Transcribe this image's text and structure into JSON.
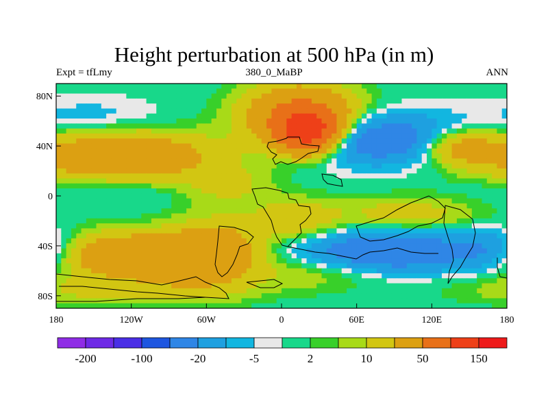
{
  "chart_data": {
    "type": "heatmap",
    "title": "Height perturbation at 500 hPa (in m)",
    "left_label": "Expt = tfLmy",
    "center_label": "380_0_MaBP",
    "right_label": "ANN",
    "x_ticks": [
      "180",
      "120W",
      "60W",
      "0",
      "60E",
      "120E",
      "180"
    ],
    "x_range": [
      -180,
      180
    ],
    "y_ticks": [
      "80N",
      "40N",
      "0",
      "40S",
      "80S"
    ],
    "y_range": [
      -90,
      90
    ],
    "levels": [
      -200,
      -150,
      -100,
      -50,
      -20,
      -10,
      -5,
      -2,
      2,
      5,
      10,
      20,
      50,
      100,
      150,
      200
    ],
    "colorbar_labels": [
      {
        "level": -200,
        "text": "-200"
      },
      {
        "level": -100,
        "text": "-100"
      },
      {
        "level": -20,
        "text": "-20"
      },
      {
        "level": -5,
        "text": "-5"
      },
      {
        "level": 2,
        "text": "2"
      },
      {
        "level": 10,
        "text": "10"
      },
      {
        "level": 50,
        "text": "50"
      },
      {
        "level": 150,
        "text": "150"
      }
    ],
    "colors": [
      "#8f2de6",
      "#6e2ae6",
      "#4a2ee6",
      "#1e56e0",
      "#2f86e6",
      "#1ea0e0",
      "#12b6e0",
      "#e8e8e8",
      "#18d88a",
      "#38d02a",
      "#a8da18",
      "#d2c612",
      "#dca012",
      "#e87018",
      "#ee4018",
      "#ee1a1a"
    ],
    "anomaly_centers": [
      {
        "lon": -130,
        "lat": 32,
        "value": 40,
        "spread_lon": 55,
        "spread_lat": 14
      },
      {
        "lon": -45,
        "lat": 8,
        "value": 12,
        "spread_lon": 25,
        "spread_lat": 10
      },
      {
        "lon": -135,
        "lat": -47,
        "value": 45,
        "spread_lon": 60,
        "spread_lat": 12
      },
      {
        "lon": -55,
        "lat": -45,
        "value": 30,
        "spread_lon": 25,
        "spread_lat": 18
      },
      {
        "lon": 20,
        "lat": 52,
        "value": 120,
        "spread_lon": 16,
        "spread_lat": 11
      },
      {
        "lon": 15,
        "lat": 65,
        "value": 55,
        "spread_lon": 30,
        "spread_lat": 16
      },
      {
        "lon": 85,
        "lat": 45,
        "value": -35,
        "spread_lon": 45,
        "spread_lat": 14
      },
      {
        "lon": 140,
        "lat": 40,
        "value": 30,
        "spread_lon": 22,
        "spread_lat": 10
      },
      {
        "lon": 90,
        "lat": -45,
        "value": -40,
        "spread_lon": 55,
        "spread_lat": 12
      },
      {
        "lon": 170,
        "lat": -45,
        "value": -30,
        "spread_lon": 25,
        "spread_lat": 12
      },
      {
        "lon": -150,
        "lat": 62,
        "value": -8,
        "spread_lon": 40,
        "spread_lat": 12
      },
      {
        "lon": -140,
        "lat": 5,
        "value": -6,
        "spread_lon": 45,
        "spread_lat": 8
      },
      {
        "lon": 10,
        "lat": -20,
        "value": 18,
        "spread_lon": 25,
        "spread_lat": 12
      },
      {
        "lon": 100,
        "lat": -15,
        "value": 15,
        "spread_lon": 40,
        "spread_lat": 10
      },
      {
        "lon": 30,
        "lat": -60,
        "value": 12,
        "spread_lon": 40,
        "spread_lat": 10
      },
      {
        "lon": -120,
        "lat": -75,
        "value": 15,
        "spread_lon": 60,
        "spread_lat": 8
      }
    ]
  }
}
